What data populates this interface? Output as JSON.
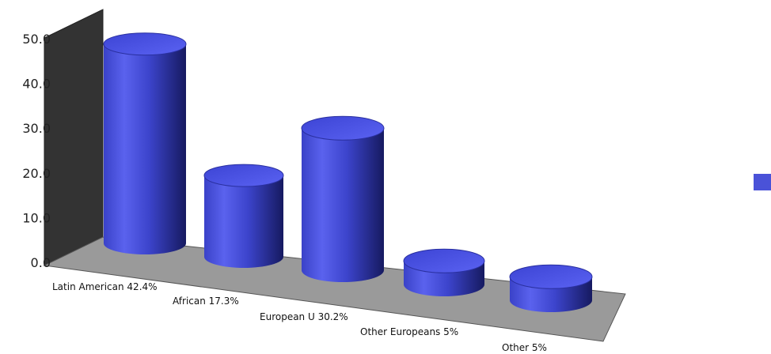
{
  "chart_data": {
    "type": "bar",
    "style": "3d-cylinder",
    "categories": [
      "Latin American 42.4%",
      "African 17.3%",
      "European U 30.2%",
      "Other Europeans 5%",
      "Other 5%"
    ],
    "values": [
      42.4,
      17.3,
      30.2,
      5,
      5
    ],
    "yticks": [
      "0.0",
      "10.0",
      "20.0",
      "30.0",
      "40.0",
      "50.0"
    ],
    "ylim": [
      0,
      50
    ],
    "grid": false,
    "legend": "right",
    "colors": {
      "bar": "#4a52d8",
      "bar_dark": "#1e2478",
      "bar_light": "#8890ff",
      "wall": "#333333",
      "floor": "#9a9a9a",
      "legend_swatch": "#4a52d8"
    }
  }
}
